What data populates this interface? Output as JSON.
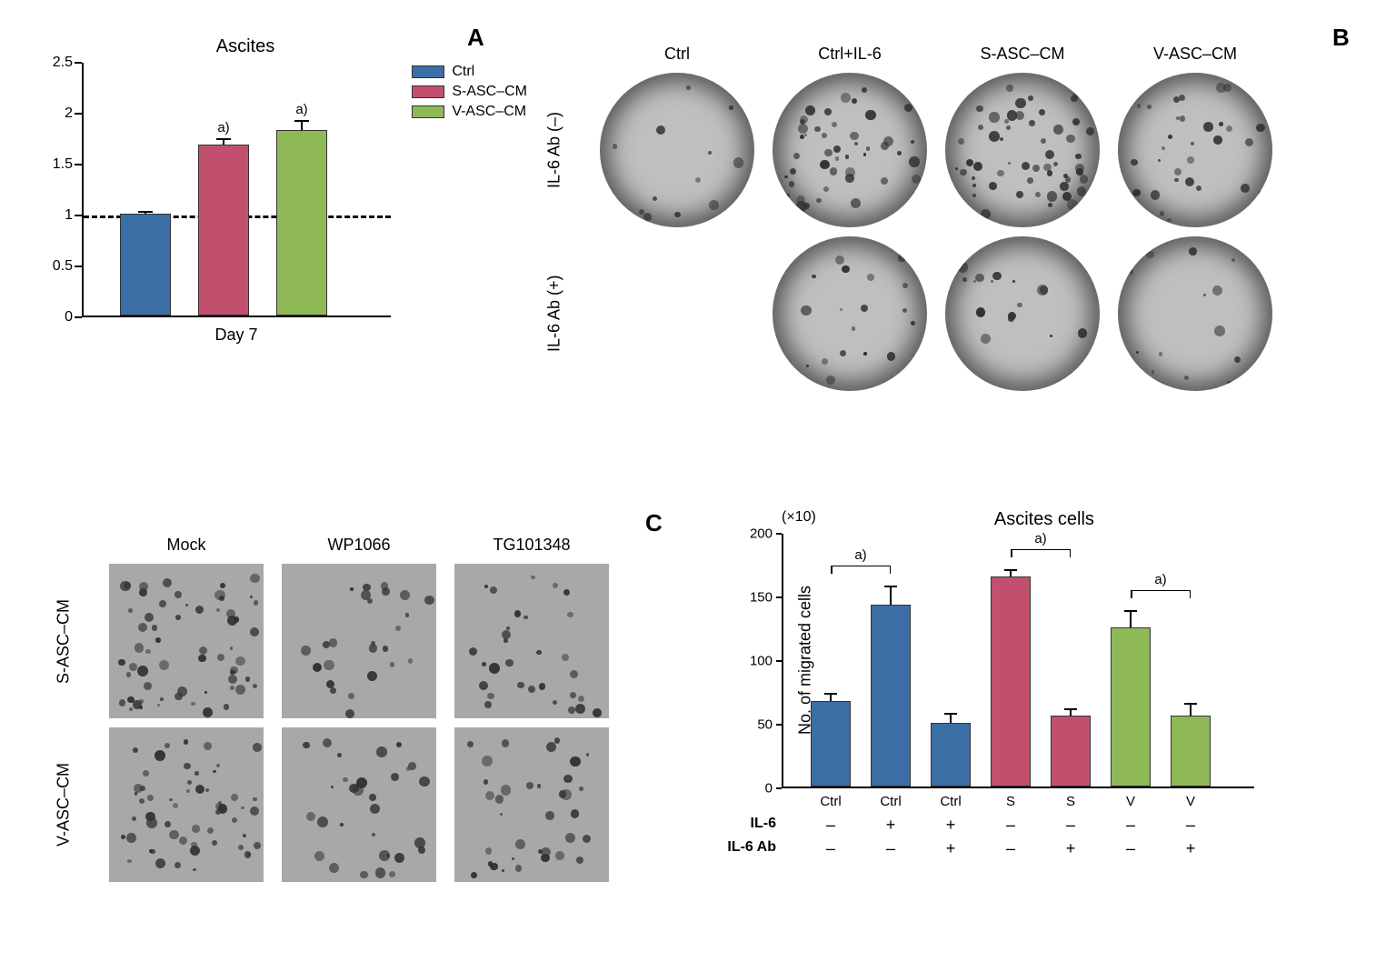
{
  "panel_labels": {
    "A": "A",
    "B": "B",
    "C": "C"
  },
  "colors": {
    "ctrl": "#3b6ea5",
    "s_asc": "#c1506e",
    "v_asc": "#8fb857",
    "axis": "#000000",
    "background": "#ffffff"
  },
  "panelA": {
    "title": "Ascites",
    "ylim": [
      0,
      2.5
    ],
    "ytick_step": 0.5,
    "baseline": 1.0,
    "xlabel": "Day 7",
    "legend": [
      {
        "label": "Ctrl",
        "color": "#3b6ea5"
      },
      {
        "label": "S-ASC–CM",
        "color": "#c1506e"
      },
      {
        "label": "V-ASC–CM",
        "color": "#8fb857"
      }
    ],
    "bars": [
      {
        "value": 1.0,
        "err": 0.02,
        "color": "#3b6ea5",
        "anno": ""
      },
      {
        "value": 1.68,
        "err": 0.05,
        "color": "#c1506e",
        "anno": "a)"
      },
      {
        "value": 1.82,
        "err": 0.09,
        "color": "#8fb857",
        "anno": "a)"
      }
    ]
  },
  "panelB_grid": {
    "col_headers": [
      "Ctrl",
      "Ctrl+IL-6",
      "S-ASC–CM",
      "V-ASC–CM"
    ],
    "row_headers": [
      "IL-6 Ab (–)",
      "IL-6 Ab (+)"
    ],
    "densities": [
      [
        12,
        45,
        55,
        35
      ],
      [
        20,
        18,
        15
      ]
    ]
  },
  "panelB_chart": {
    "title": "Ascites cells",
    "scale_label": "(×10)",
    "yaxis": "No. of migrated cells",
    "ylim": [
      0,
      200
    ],
    "ytick_step": 50,
    "categories": [
      "Ctrl",
      "Ctrl",
      "Ctrl",
      "S",
      "S",
      "V",
      "V"
    ],
    "il6_row_label": "IL-6",
    "il6ab_row_label": "IL-6 Ab",
    "il6": [
      "–",
      "+",
      "+",
      "–",
      "–",
      "–",
      "–"
    ],
    "il6ab": [
      "–",
      "–",
      "+",
      "–",
      "+",
      "–",
      "+"
    ],
    "bars": [
      {
        "value": 67,
        "err": 6,
        "color": "#3b6ea5"
      },
      {
        "value": 143,
        "err": 14,
        "color": "#3b6ea5"
      },
      {
        "value": 50,
        "err": 7,
        "color": "#3b6ea5"
      },
      {
        "value": 165,
        "err": 5,
        "color": "#c1506e"
      },
      {
        "value": 56,
        "err": 5,
        "color": "#c1506e"
      },
      {
        "value": 125,
        "err": 13,
        "color": "#8fb857"
      },
      {
        "value": 56,
        "err": 9,
        "color": "#8fb857"
      }
    ],
    "brackets": [
      {
        "from": 0,
        "to": 1,
        "label": "a)"
      },
      {
        "from": 3,
        "to": 4,
        "label": "a)"
      },
      {
        "from": 5,
        "to": 6,
        "label": "a)"
      }
    ]
  },
  "panelC": {
    "col_headers": [
      "Mock",
      "WP1066",
      "TG101348"
    ],
    "row_headers": [
      "S-ASC–CM",
      "V-ASC–CM"
    ],
    "densities": [
      [
        60,
        25,
        30
      ],
      [
        55,
        30,
        35
      ]
    ]
  }
}
